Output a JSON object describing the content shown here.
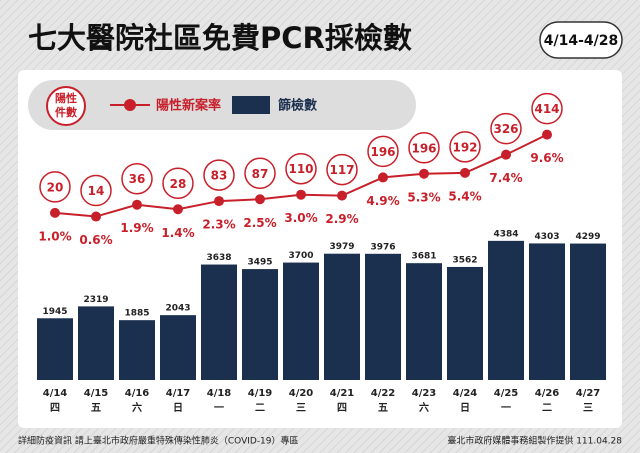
{
  "chart_data": {
    "type": "bar_line",
    "title": "七大醫院社區免費PCR採檢數",
    "date_range": "4/14-4/28",
    "categories": [
      "4/14",
      "4/15",
      "4/16",
      "4/17",
      "4/18",
      "4/19",
      "4/20",
      "4/21",
      "4/22",
      "4/23",
      "4/24",
      "4/25",
      "4/26",
      "4/27"
    ],
    "weekdays": [
      "四",
      "五",
      "六",
      "日",
      "一",
      "二",
      "三",
      "四",
      "五",
      "六",
      "日",
      "一",
      "二",
      "三"
    ],
    "positives_name": "陽性件數",
    "positives": [
      20,
      14,
      36,
      28,
      83,
      87,
      110,
      117,
      196,
      196,
      192,
      326,
      414,
      null
    ],
    "ylim": [
      0,
      4600
    ],
    "y2lim": [
      0,
      10
    ],
    "series": [
      {
        "name": "篩檢數",
        "color": "#1b2f4e",
        "values": [
          1945,
          2319,
          1885,
          2043,
          3638,
          3495,
          3700,
          3979,
          3976,
          3681,
          3562,
          4384,
          4303,
          4299
        ]
      },
      {
        "name": "陽性新案率",
        "color": "#c8202a",
        "axis": "y2",
        "values": [
          1.0,
          0.6,
          1.9,
          1.4,
          2.3,
          2.5,
          3.0,
          2.9,
          4.9,
          5.3,
          5.4,
          7.4,
          9.6,
          null
        ],
        "value_labels": [
          "1.0%",
          "0.6%",
          "1.9%",
          "1.4%",
          "2.3%",
          "2.5%",
          "3.0%",
          "2.9%",
          "4.9%",
          "5.3%",
          "5.4%",
          "7.4%",
          "9.6%",
          null
        ]
      }
    ],
    "footer_left": "詳細防疫資訊 請上臺北市政府嚴重特殊傳染性肺炎（COVID-19）專區",
    "footer_right": "臺北市政府媒體事務組製作提供 111.04.28"
  }
}
